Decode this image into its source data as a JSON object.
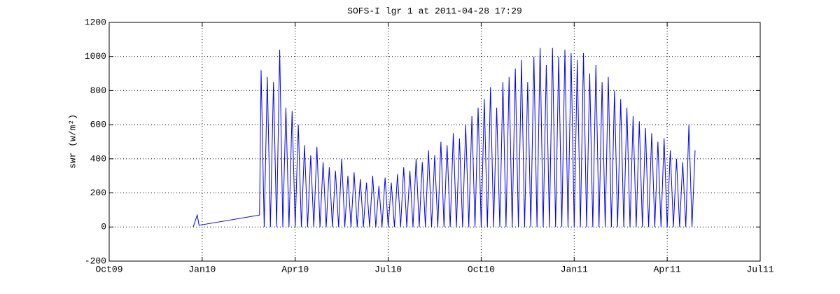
{
  "chart_data": {
    "type": "line",
    "title": "SOFS-I lgr 1 at 2011-04-28 17:29",
    "y_label": "swr (w/m²)",
    "color": "#0000ff",
    "grid": true,
    "xlim": [
      0,
      21
    ],
    "xticks": [
      {
        "value": 0,
        "label": "Oct09"
      },
      {
        "value": 3,
        "label": "Jan10"
      },
      {
        "value": 6,
        "label": "Apr10"
      },
      {
        "value": 9,
        "label": "Jul10"
      },
      {
        "value": 12,
        "label": "Oct10"
      },
      {
        "value": 15,
        "label": "Jan11"
      },
      {
        "value": 18,
        "label": "Apr11"
      },
      {
        "value": 21,
        "label": "Jul11"
      }
    ],
    "ylim": [
      -200,
      1200
    ],
    "yticks": [
      -200,
      0,
      200,
      400,
      600,
      800,
      1000,
      1200
    ],
    "x": [
      2.71,
      2.84,
      2.9,
      4.85,
      4.9,
      5,
      5.1,
      5.2,
      5.3,
      5.4,
      5.5,
      5.6,
      5.7,
      5.8,
      5.9,
      6,
      6.1,
      6.2,
      6.3,
      6.4,
      6.5,
      6.6,
      6.7,
      6.8,
      6.9,
      7,
      7.1,
      7.2,
      7.3,
      7.4,
      7.5,
      7.6,
      7.7,
      7.8,
      7.9,
      8,
      8.1,
      8.2,
      8.3,
      8.4,
      8.5,
      8.6,
      8.7,
      8.8,
      8.9,
      9,
      9.1,
      9.2,
      9.3,
      9.4,
      9.5,
      9.6,
      9.7,
      9.8,
      9.9,
      10,
      10.1,
      10.2,
      10.3,
      10.4,
      10.5,
      10.6,
      10.7,
      10.8,
      10.9,
      11,
      11.1,
      11.2,
      11.3,
      11.4,
      11.5,
      11.6,
      11.7,
      11.8,
      11.9,
      12,
      12.1,
      12.2,
      12.3,
      12.4,
      12.5,
      12.6,
      12.7,
      12.8,
      12.9,
      13,
      13.1,
      13.2,
      13.3,
      13.4,
      13.5,
      13.6,
      13.7,
      13.8,
      13.9,
      14,
      14.1,
      14.2,
      14.3,
      14.4,
      14.5,
      14.6,
      14.7,
      14.8,
      14.9,
      15,
      15.1,
      15.2,
      15.3,
      15.4,
      15.5,
      15.6,
      15.7,
      15.8,
      15.9,
      16,
      16.1,
      16.2,
      16.3,
      16.4,
      16.5,
      16.6,
      16.7,
      16.8,
      16.9,
      17,
      17.1,
      17.2,
      17.3,
      17.4,
      17.5,
      17.6,
      17.7,
      17.8,
      17.9,
      18,
      18.1,
      18.2,
      18.3,
      18.4,
      18.5,
      18.6,
      18.7,
      18.8,
      18.9
    ],
    "values": [
      0,
      70,
      10,
      70,
      920,
      0,
      880,
      0,
      850,
      0,
      1040,
      0,
      700,
      0,
      680,
      0,
      600,
      0,
      480,
      0,
      420,
      0,
      470,
      0,
      380,
      0,
      350,
      0,
      330,
      0,
      400,
      0,
      300,
      0,
      320,
      0,
      280,
      0,
      260,
      0,
      300,
      0,
      240,
      0,
      290,
      0,
      260,
      0,
      310,
      0,
      350,
      0,
      330,
      0,
      400,
      0,
      380,
      0,
      450,
      0,
      420,
      0,
      500,
      0,
      480,
      0,
      550,
      0,
      520,
      0,
      600,
      0,
      650,
      0,
      700,
      0,
      750,
      0,
      820,
      0,
      700,
      0,
      850,
      0,
      880,
      0,
      930,
      0,
      980,
      0,
      850,
      0,
      1000,
      0,
      1050,
      0,
      950,
      0,
      1050,
      0,
      1000,
      0,
      1040,
      0,
      1020,
      0,
      980,
      0,
      1020,
      0,
      900,
      0,
      950,
      0,
      850,
      0,
      880,
      0,
      800,
      0,
      750,
      0,
      700,
      0,
      650,
      0,
      620,
      0,
      580,
      0,
      550,
      0,
      500,
      0,
      520,
      0,
      450,
      0,
      400,
      0,
      380,
      0,
      600,
      0,
      450
    ]
  }
}
